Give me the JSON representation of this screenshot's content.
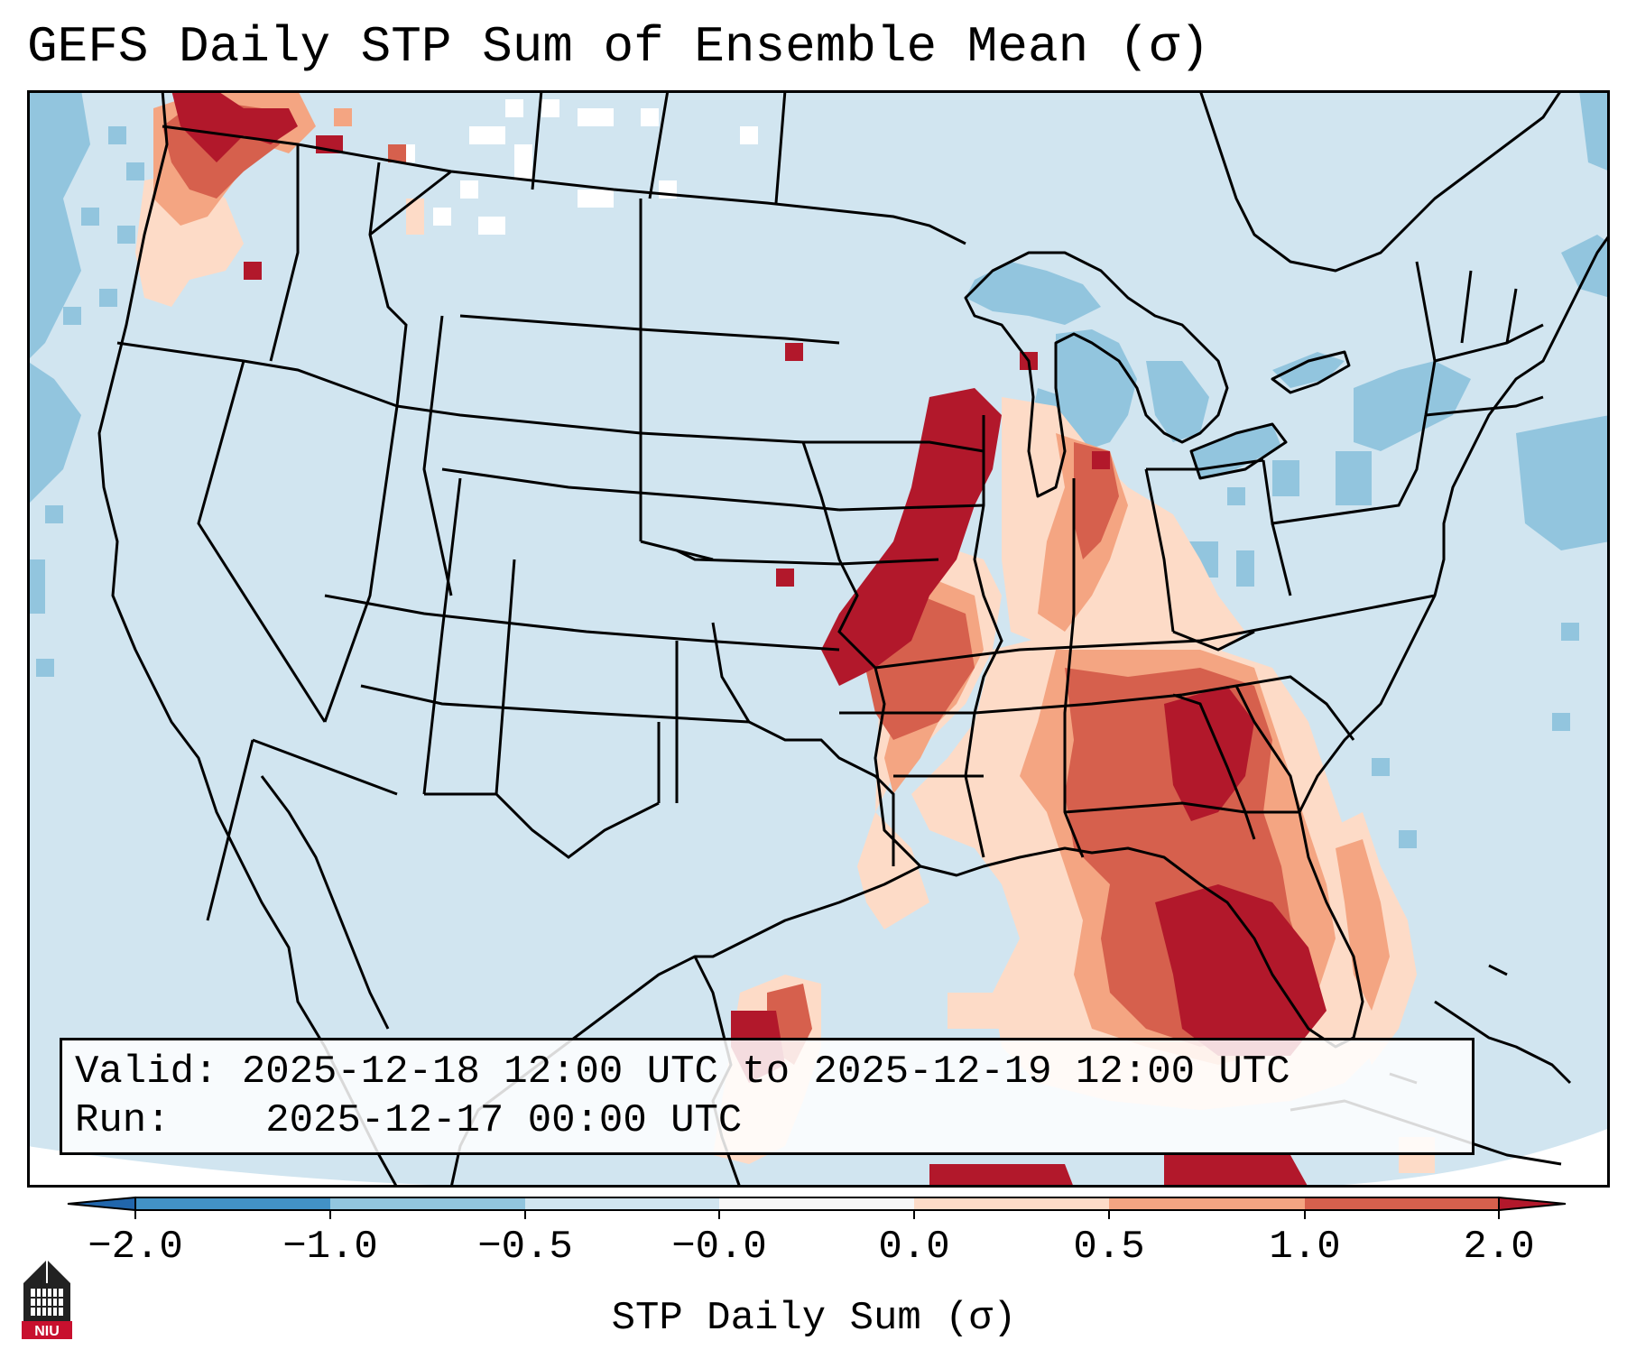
{
  "title": "GEFS Daily STP Sum of Ensemble Mean (σ)",
  "info": {
    "valid_label": "Valid:",
    "valid_value": "2025-12-18 12:00 UTC to 2025-12-19 12:00 UTC",
    "run_label": "Run:",
    "run_value": "2025-12-17 00:00 UTC"
  },
  "colorbar": {
    "label": "STP Daily Sum (σ)",
    "ticks": [
      "−2.0",
      "−1.0",
      "−0.5",
      "−0.0",
      "0.0",
      "0.5",
      "1.0",
      "2.0"
    ],
    "colors": [
      "#4292c6",
      "#92c5de",
      "#d1e5f0",
      "#f7f7f7",
      "#fddbc7",
      "#f4a582",
      "#d6604d",
      "#b2182b"
    ],
    "under_color": "#2166ac",
    "over_color": "#b2182b"
  },
  "map": {
    "background_color": "#d1e5f0",
    "colors": {
      "strong_red": "#b2182b",
      "red": "#d6604d",
      "salmon": "#f4a582",
      "peach": "#fddbc7",
      "blue": "#92c5de"
    }
  },
  "logo": {
    "text": "NIU",
    "icon": "niu-tower-icon"
  }
}
